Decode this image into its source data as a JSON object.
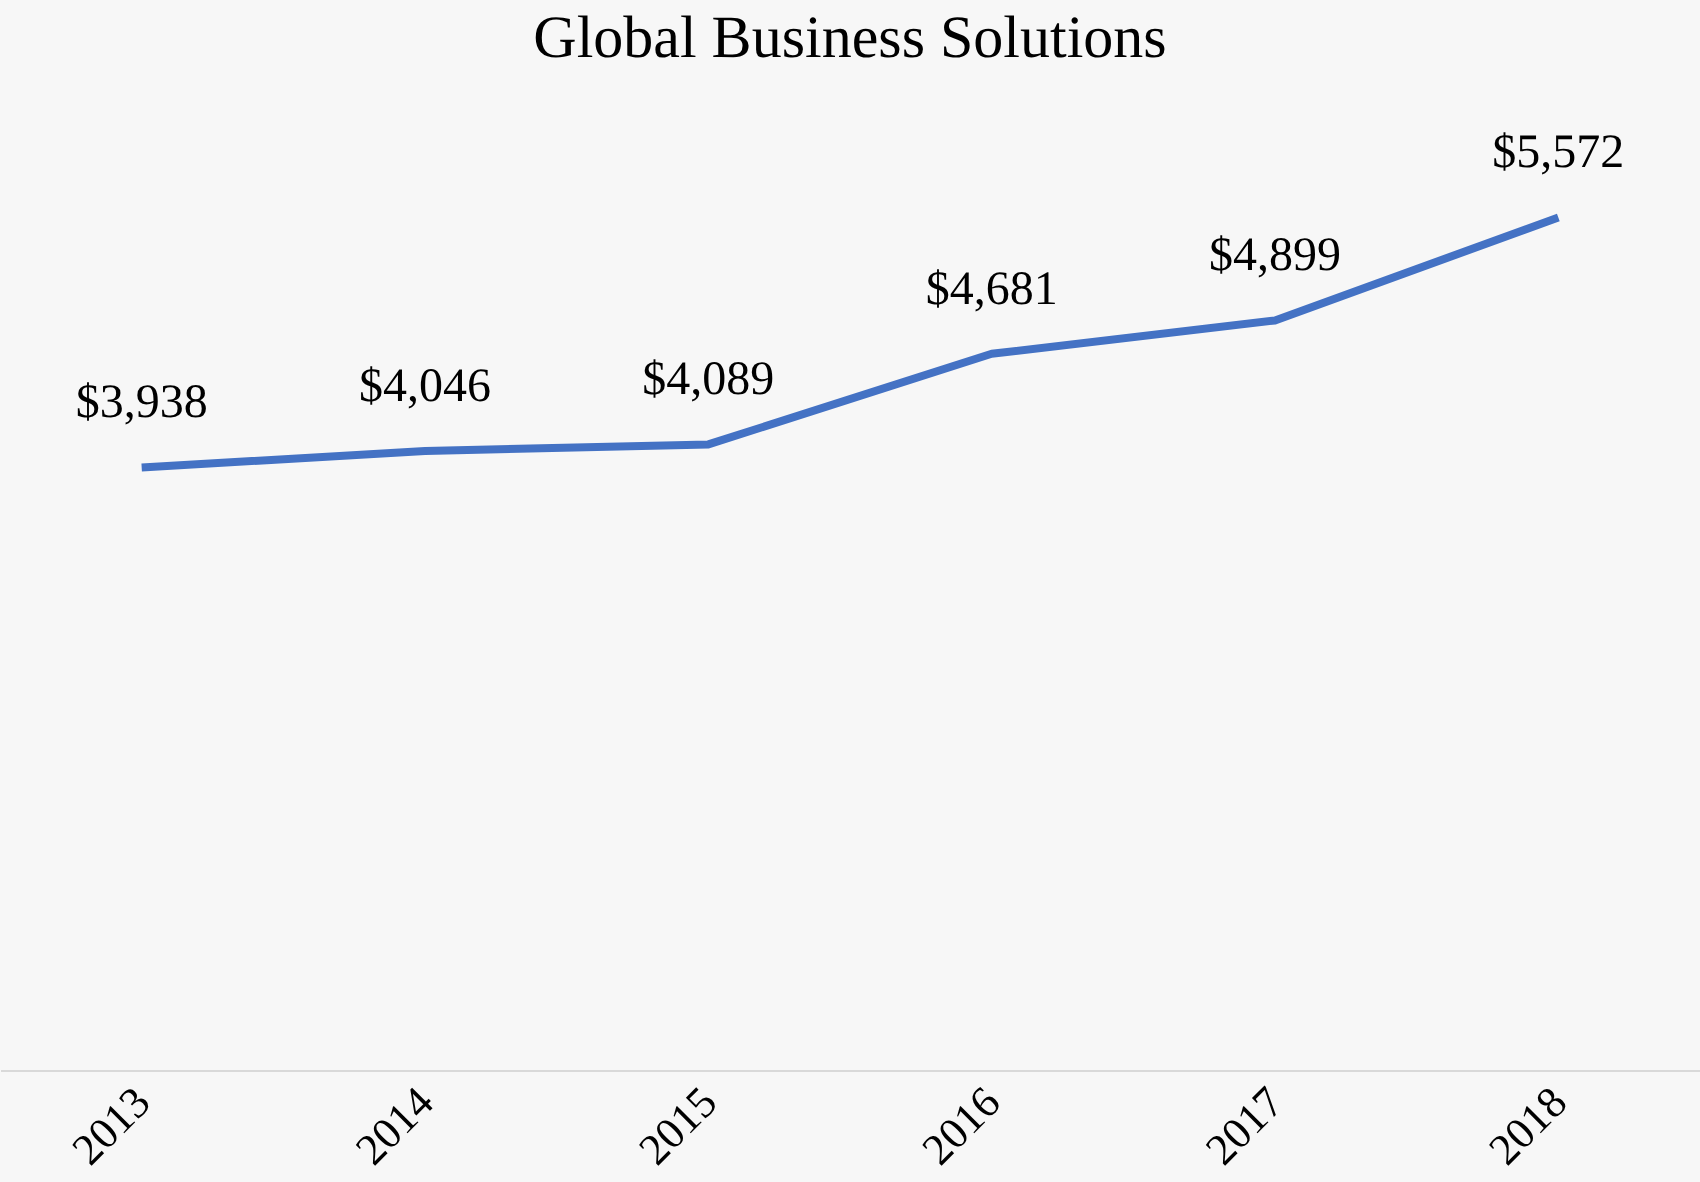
{
  "chart_data": {
    "type": "line",
    "title": "Global Business Solutions",
    "categories": [
      "2013",
      "2014",
      "2015",
      "2016",
      "2017",
      "2018"
    ],
    "series": [
      {
        "color": "#4472c4",
        "values": [
          3938,
          4046,
          4089,
          4681,
          4899,
          5572
        ],
        "value_labels": [
          "$3,938",
          "$4,046",
          "$4,089",
          "$4,681",
          "$4,899",
          "$5,572"
        ]
      }
    ],
    "grid": false,
    "marker": "none"
  }
}
